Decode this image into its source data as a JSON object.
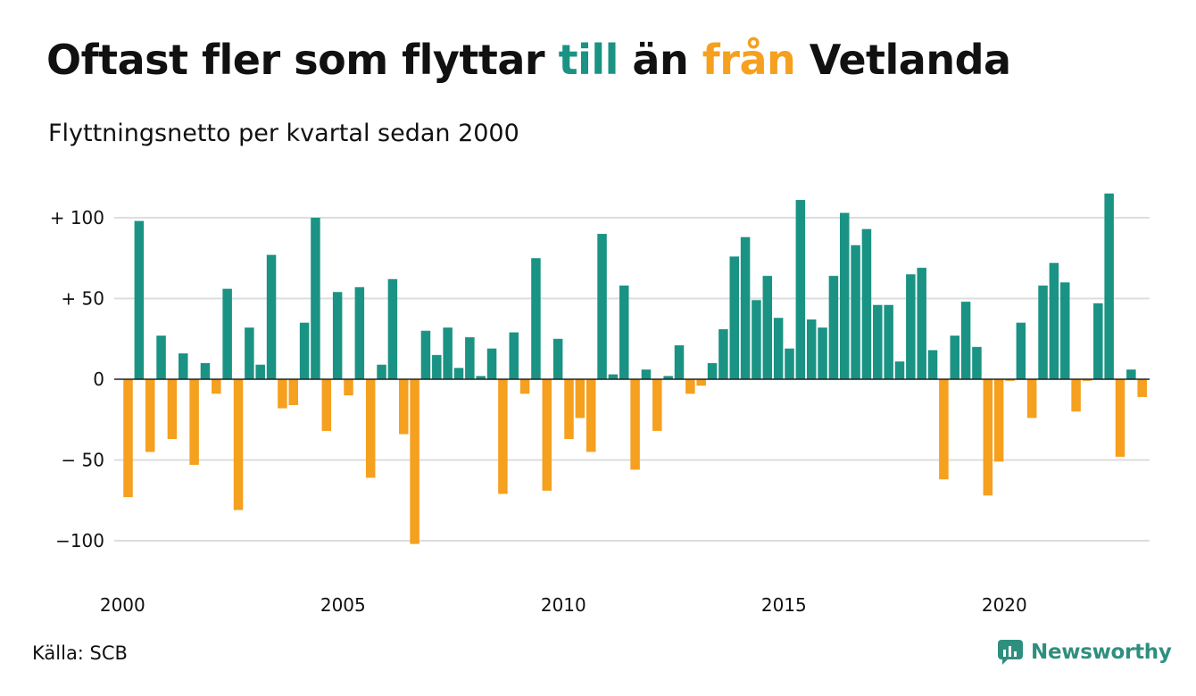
{
  "colors": {
    "positive": "#1a9384",
    "negative": "#f5a01e",
    "text": "#111111",
    "grid": "#dddddd",
    "brand": "#2f8f7f"
  },
  "header": {
    "title_parts": [
      {
        "text": "Oftast fler som flyttar ",
        "color": "#111111"
      },
      {
        "text": "till",
        "color": "#1a9384"
      },
      {
        "text": " än ",
        "color": "#111111"
      },
      {
        "text": "från",
        "color": "#f5a01e"
      },
      {
        "text": " Vetlanda",
        "color": "#111111"
      }
    ],
    "subtitle": "Flyttningsnetto per kvartal sedan 2000"
  },
  "footer": {
    "source": "Källa: SCB",
    "brand": "Newsworthy",
    "brand_icon": "newsworthy-logo-icon"
  },
  "chart_data": {
    "type": "bar",
    "title": "Oftast fler som flyttar till än från Vetlanda",
    "subtitle": "Flyttningsnetto per kvartal sedan 2000",
    "xlabel": "",
    "ylabel": "",
    "ylim": [
      -120,
      120
    ],
    "y_ticks": [
      100,
      50,
      0,
      -50,
      -100
    ],
    "y_tick_labels": [
      "+ 100",
      "+  50",
      "0",
      "− 50",
      "−100"
    ],
    "x_ticks": [
      "2000",
      "2005",
      "2010",
      "2015",
      "2020"
    ],
    "grid": true,
    "legend": "none",
    "x_start": "2000 Q1",
    "periods": "quarterly",
    "values": [
      -73,
      98,
      -45,
      27,
      -37,
      16,
      -53,
      10,
      -9,
      56,
      -81,
      32,
      9,
      77,
      -18,
      -16,
      35,
      100,
      -32,
      54,
      -10,
      57,
      -61,
      9,
      62,
      -34,
      -102,
      30,
      15,
      32,
      7,
      26,
      2,
      19,
      -71,
      29,
      -9,
      75,
      -69,
      25,
      -37,
      -24,
      -45,
      90,
      3,
      58,
      -56,
      6,
      -32,
      2,
      21,
      -9,
      -4,
      10,
      31,
      76,
      88,
      49,
      64,
      38,
      19,
      111,
      37,
      32,
      64,
      103,
      83,
      93,
      46,
      46,
      11,
      65,
      69,
      18,
      -62,
      27,
      48,
      20,
      -72,
      -51,
      -1,
      35,
      -24,
      58,
      72,
      60,
      -20,
      -1,
      47,
      115,
      -48,
      6,
      -11
    ]
  }
}
